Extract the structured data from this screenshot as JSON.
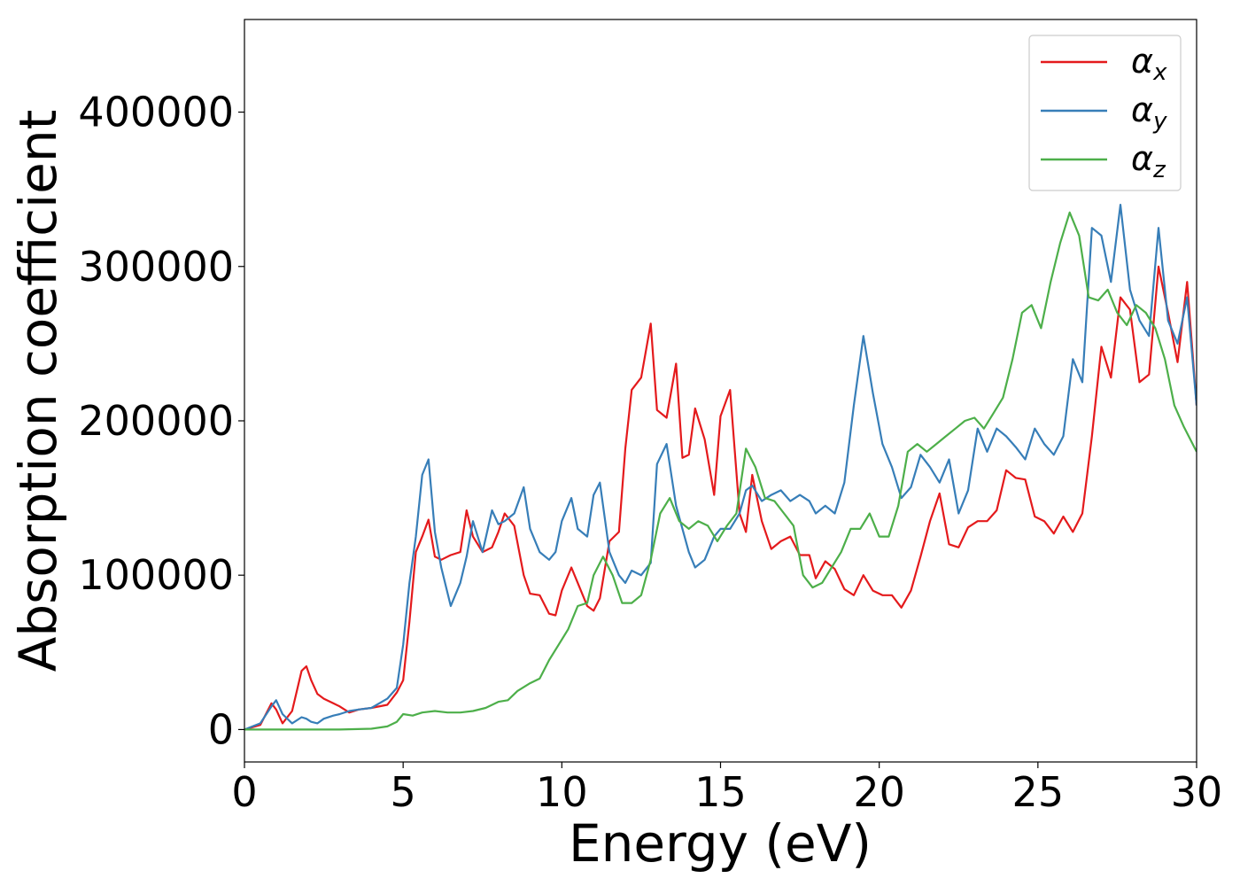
{
  "chart_data": {
    "type": "line",
    "title": "",
    "xlabel": "Energy (eV)",
    "ylabel": "Absorption coefficient",
    "xlim": [
      0,
      30
    ],
    "ylim": [
      -21000,
      460000
    ],
    "xticks": [
      0,
      5,
      10,
      15,
      20,
      25,
      30
    ],
    "yticks": [
      0,
      100000,
      200000,
      300000,
      400000
    ],
    "grid": false,
    "legend_position": "top-right",
    "series": [
      {
        "name": "αx",
        "label_base": "α",
        "label_sub": "x",
        "color": "#e41a1c",
        "x": [
          0,
          0.5,
          0.85,
          1.0,
          1.2,
          1.5,
          1.8,
          1.95,
          2.1,
          2.3,
          2.5,
          2.8,
          3.0,
          3.3,
          3.6,
          4.0,
          4.5,
          4.8,
          5.0,
          5.2,
          5.4,
          5.6,
          5.8,
          6.0,
          6.2,
          6.5,
          6.8,
          7.0,
          7.2,
          7.5,
          7.8,
          8.0,
          8.2,
          8.5,
          8.8,
          9.0,
          9.3,
          9.6,
          9.8,
          10.0,
          10.3,
          10.5,
          10.8,
          11.0,
          11.2,
          11.5,
          11.8,
          12.0,
          12.2,
          12.5,
          12.8,
          13.0,
          13.3,
          13.6,
          13.8,
          14.0,
          14.2,
          14.5,
          14.8,
          15.0,
          15.3,
          15.6,
          15.8,
          16.0,
          16.3,
          16.6,
          16.9,
          17.2,
          17.5,
          17.8,
          18.0,
          18.3,
          18.6,
          18.9,
          19.2,
          19.5,
          19.8,
          20.1,
          20.4,
          20.7,
          21.0,
          21.3,
          21.6,
          21.9,
          22.2,
          22.5,
          22.8,
          23.1,
          23.4,
          23.7,
          24.0,
          24.3,
          24.6,
          24.9,
          25.2,
          25.5,
          25.8,
          26.1,
          26.4,
          26.7,
          27.0,
          27.3,
          27.6,
          27.9,
          28.2,
          28.5,
          28.8,
          29.1,
          29.4,
          29.7,
          30.0
        ],
        "y": [
          0,
          3000,
          17000,
          13000,
          4000,
          12000,
          38000,
          41000,
          32000,
          23000,
          20000,
          17000,
          15000,
          11000,
          13000,
          14000,
          16000,
          24000,
          32000,
          70000,
          115000,
          125000,
          136000,
          112000,
          110000,
          113000,
          115000,
          142000,
          125000,
          115000,
          118000,
          128000,
          140000,
          132000,
          100000,
          88000,
          87000,
          75000,
          74000,
          90000,
          105000,
          95000,
          80000,
          77000,
          85000,
          122000,
          128000,
          182000,
          220000,
          228000,
          263000,
          207000,
          202000,
          237000,
          176000,
          178000,
          208000,
          188000,
          152000,
          203000,
          220000,
          140000,
          128000,
          165000,
          135000,
          117000,
          122000,
          125000,
          113000,
          113000,
          98000,
          109000,
          104000,
          91000,
          87000,
          100000,
          90000,
          87000,
          87000,
          79000,
          90000,
          112000,
          135000,
          153000,
          120000,
          118000,
          131000,
          135000,
          135000,
          142000,
          168000,
          163000,
          162000,
          138000,
          135000,
          127000,
          138000,
          128000,
          140000,
          190000,
          248000,
          228000,
          280000,
          272000,
          225000,
          230000,
          300000,
          270000,
          238000,
          290000,
          210000
        ]
      },
      {
        "name": "αy",
        "label_base": "α",
        "label_sub": "y",
        "color": "#377eb8",
        "x": [
          0,
          0.5,
          0.85,
          1.0,
          1.2,
          1.5,
          1.8,
          1.95,
          2.1,
          2.3,
          2.5,
          2.8,
          3.0,
          3.3,
          3.6,
          4.0,
          4.5,
          4.8,
          5.0,
          5.2,
          5.4,
          5.6,
          5.8,
          6.0,
          6.2,
          6.5,
          6.8,
          7.0,
          7.2,
          7.5,
          7.8,
          8.0,
          8.2,
          8.5,
          8.8,
          9.0,
          9.3,
          9.6,
          9.8,
          10.0,
          10.3,
          10.5,
          10.8,
          11.0,
          11.2,
          11.5,
          11.8,
          12.0,
          12.2,
          12.5,
          12.8,
          13.0,
          13.3,
          13.6,
          13.8,
          14.0,
          14.2,
          14.5,
          14.8,
          15.0,
          15.3,
          15.6,
          15.8,
          16.0,
          16.3,
          16.6,
          16.9,
          17.2,
          17.5,
          17.8,
          18.0,
          18.3,
          18.6,
          18.9,
          19.2,
          19.5,
          19.8,
          20.1,
          20.4,
          20.7,
          21.0,
          21.3,
          21.6,
          21.9,
          22.2,
          22.5,
          22.8,
          23.1,
          23.4,
          23.7,
          24.0,
          24.3,
          24.6,
          24.9,
          25.2,
          25.5,
          25.8,
          26.1,
          26.4,
          26.7,
          27.0,
          27.3,
          27.6,
          27.9,
          28.2,
          28.5,
          28.8,
          29.1,
          29.4,
          29.7,
          30.0
        ],
        "y": [
          0,
          4000,
          15000,
          19000,
          10000,
          4000,
          8000,
          7000,
          5000,
          4000,
          7000,
          9000,
          10000,
          12000,
          13000,
          14000,
          20000,
          27000,
          55000,
          95000,
          125000,
          165000,
          175000,
          128000,
          105000,
          80000,
          95000,
          112000,
          135000,
          115000,
          142000,
          133000,
          135000,
          140000,
          157000,
          130000,
          115000,
          110000,
          115000,
          135000,
          150000,
          130000,
          125000,
          152000,
          160000,
          115000,
          100000,
          95000,
          103000,
          100000,
          108000,
          172000,
          185000,
          145000,
          130000,
          115000,
          105000,
          110000,
          125000,
          130000,
          130000,
          140000,
          155000,
          158000,
          148000,
          152000,
          155000,
          148000,
          152000,
          148000,
          140000,
          145000,
          140000,
          160000,
          210000,
          255000,
          218000,
          185000,
          170000,
          150000,
          157000,
          178000,
          170000,
          160000,
          175000,
          140000,
          155000,
          195000,
          180000,
          195000,
          190000,
          183000,
          175000,
          195000,
          185000,
          178000,
          190000,
          240000,
          225000,
          325000,
          320000,
          290000,
          340000,
          285000,
          265000,
          255000,
          325000,
          265000,
          250000,
          280000,
          210000
        ]
      },
      {
        "name": "αz",
        "label_base": "α",
        "label_sub": "z",
        "color": "#4daf4a",
        "x": [
          0,
          1.0,
          2.0,
          3.0,
          4.0,
          4.5,
          4.8,
          5.0,
          5.3,
          5.6,
          6.0,
          6.4,
          6.8,
          7.2,
          7.6,
          8.0,
          8.3,
          8.6,
          9.0,
          9.3,
          9.6,
          9.9,
          10.2,
          10.5,
          10.8,
          11.0,
          11.3,
          11.6,
          11.9,
          12.2,
          12.5,
          12.8,
          13.1,
          13.4,
          13.7,
          14.0,
          14.3,
          14.6,
          14.9,
          15.2,
          15.5,
          15.8,
          16.1,
          16.4,
          16.7,
          17.0,
          17.3,
          17.6,
          17.9,
          18.2,
          18.5,
          18.8,
          19.1,
          19.4,
          19.7,
          20.0,
          20.3,
          20.6,
          20.9,
          21.2,
          21.5,
          21.8,
          22.1,
          22.4,
          22.7,
          23.0,
          23.3,
          23.6,
          23.9,
          24.2,
          24.5,
          24.8,
          25.1,
          25.4,
          25.7,
          26.0,
          26.3,
          26.6,
          26.9,
          27.2,
          27.5,
          27.8,
          28.1,
          28.4,
          28.7,
          29.0,
          29.3,
          29.6,
          30.0
        ],
        "y": [
          0,
          0,
          0,
          0,
          500,
          2000,
          5000,
          10000,
          9000,
          11000,
          12000,
          11000,
          11000,
          12000,
          14000,
          18000,
          19000,
          25000,
          30000,
          33000,
          45000,
          55000,
          65000,
          80000,
          82000,
          100000,
          112000,
          100000,
          82000,
          82000,
          87000,
          110000,
          140000,
          150000,
          135000,
          130000,
          135000,
          132000,
          122000,
          132000,
          140000,
          182000,
          170000,
          150000,
          148000,
          140000,
          132000,
          100000,
          92000,
          95000,
          105000,
          115000,
          130000,
          130000,
          140000,
          125000,
          125000,
          145000,
          180000,
          185000,
          180000,
          185000,
          190000,
          195000,
          200000,
          202000,
          195000,
          205000,
          215000,
          240000,
          270000,
          275000,
          260000,
          290000,
          315000,
          335000,
          320000,
          280000,
          278000,
          285000,
          270000,
          262000,
          275000,
          270000,
          260000,
          240000,
          210000,
          196000,
          180000
        ]
      }
    ]
  }
}
